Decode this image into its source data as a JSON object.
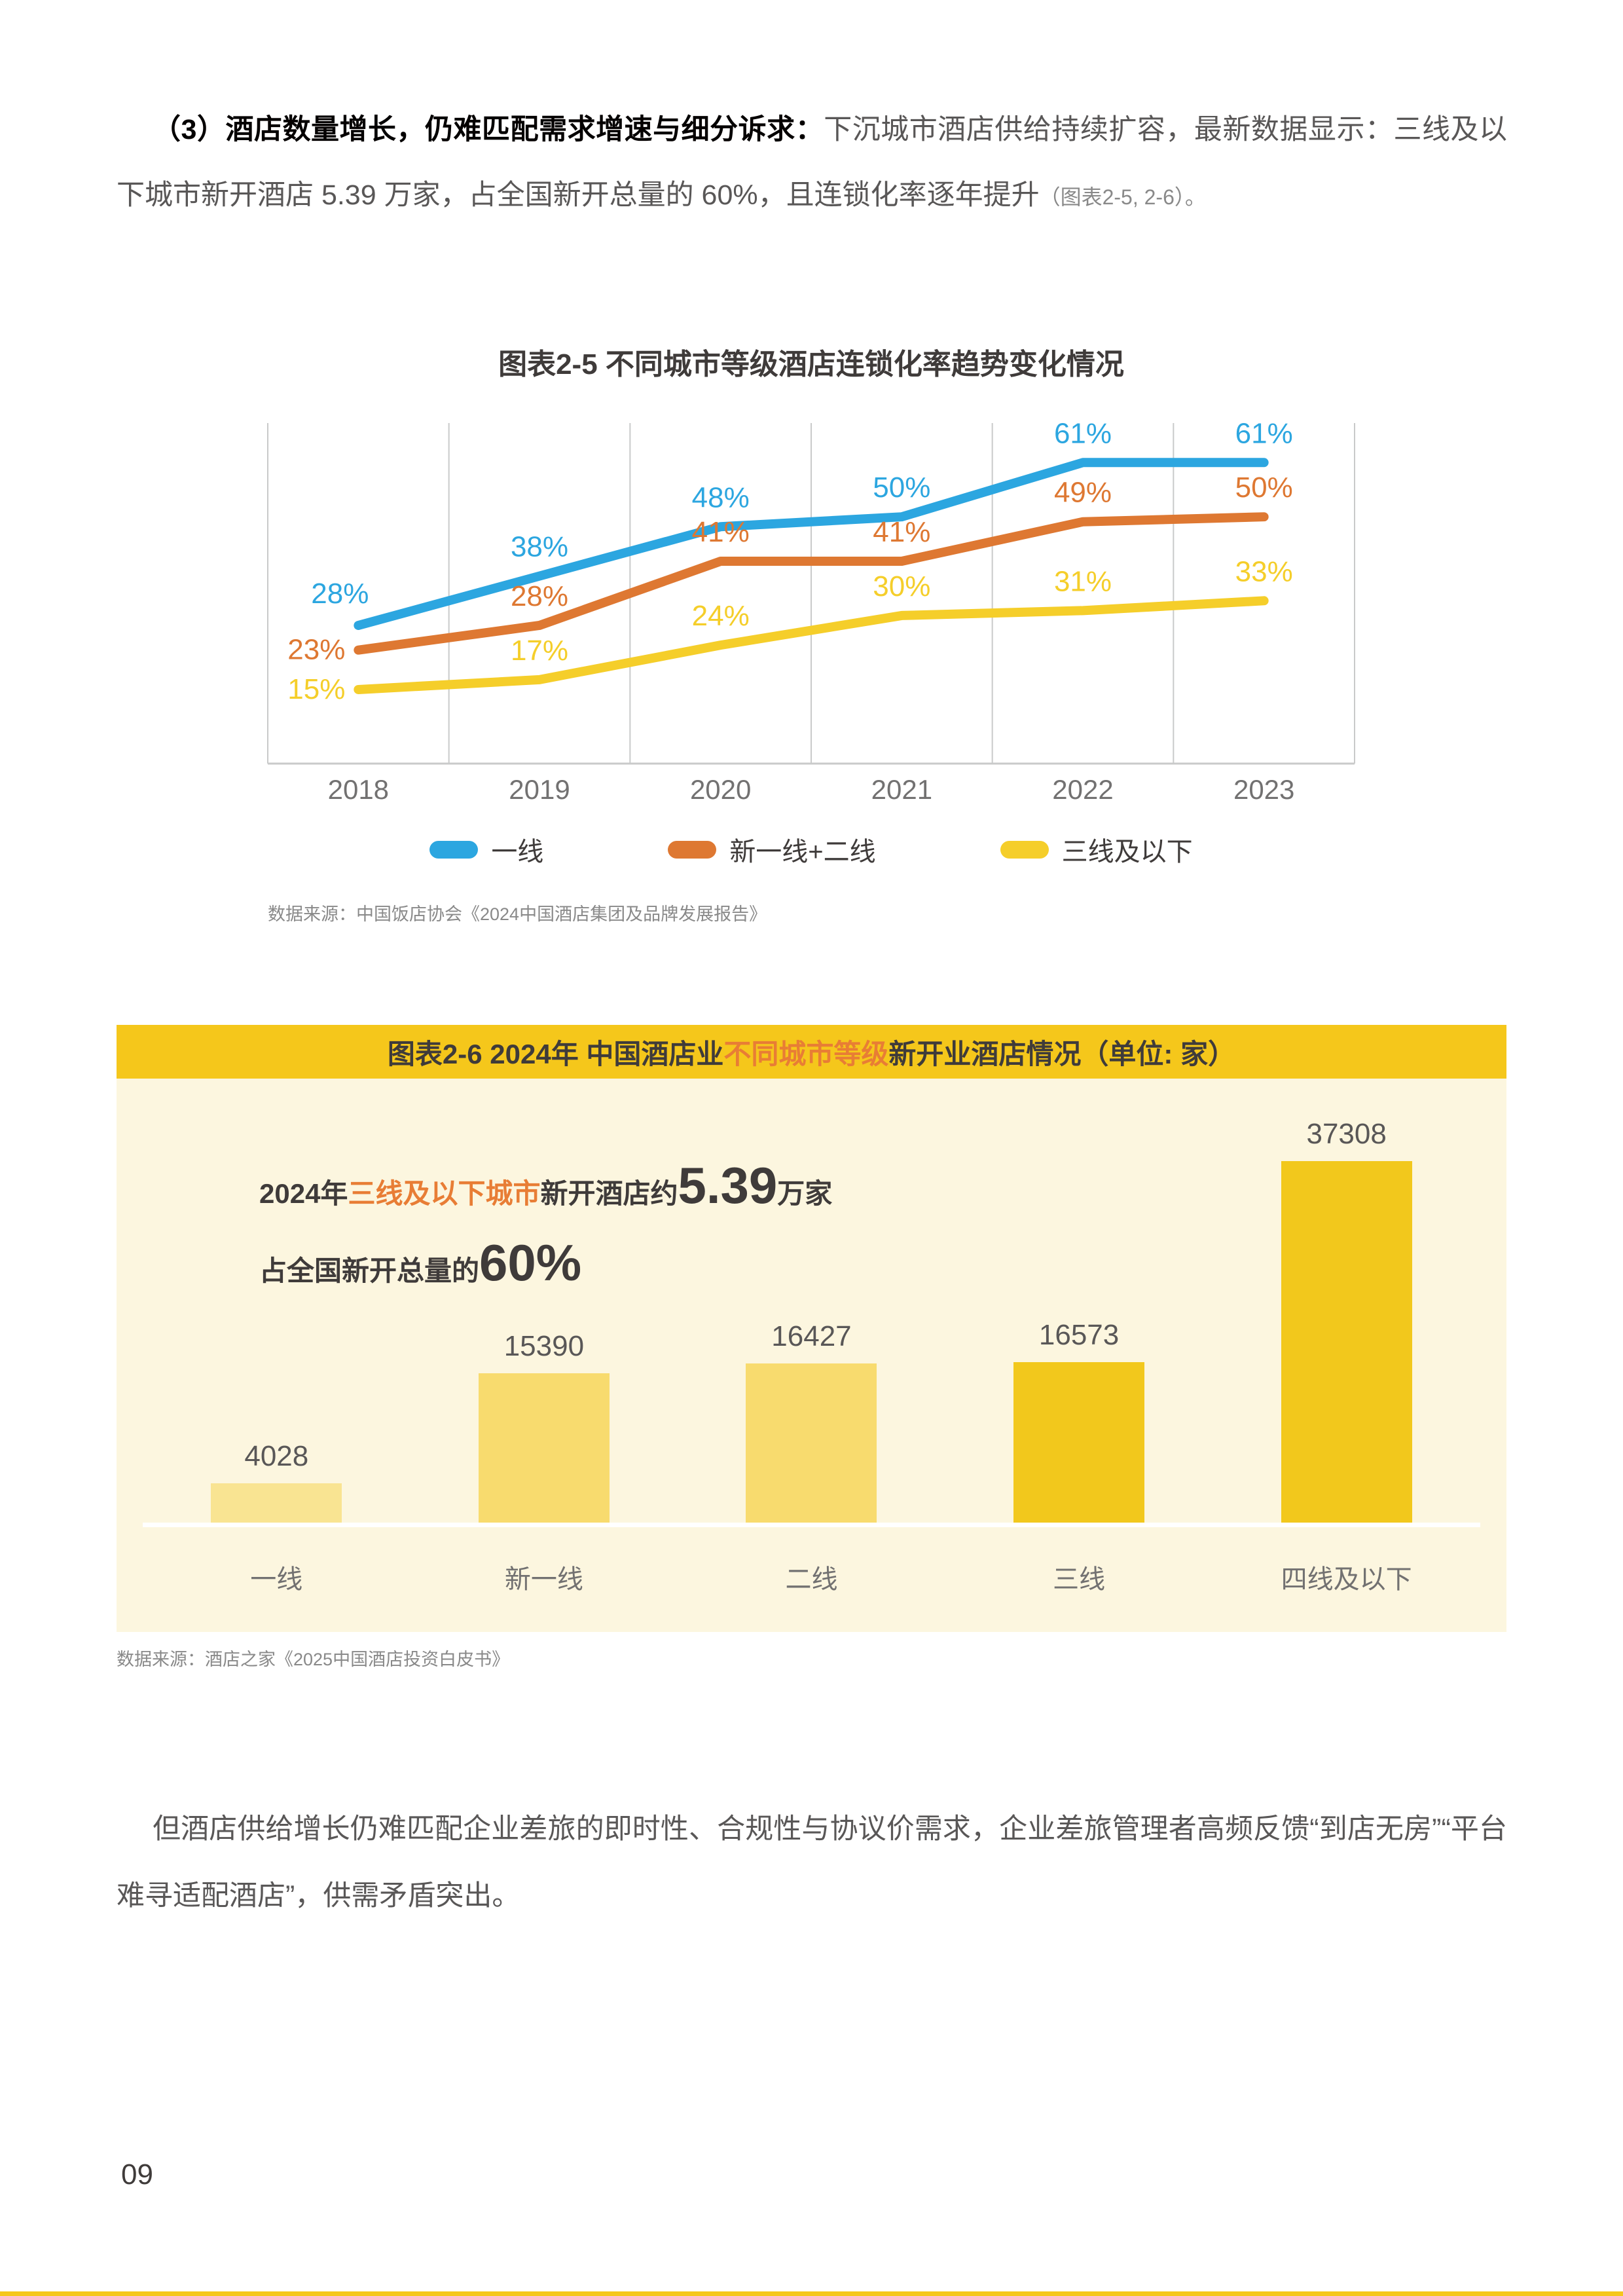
{
  "intro": {
    "lead": "（3）酒店数量增长，仍难匹配需求增速与细分诉求：",
    "body": "下沉城市酒店供给持续扩容，最新数据显示：三线及以下城市新开酒店 5.39 万家，占全国新开总量的 60%，且连锁化率逐年提升",
    "ref": "（图表2-5, 2-6）。"
  },
  "chart_data": [
    {
      "type": "line",
      "title": "图表2-5 不同城市等级酒店连锁化率趋势变化情况",
      "categories": [
        "2018",
        "2019",
        "2020",
        "2021",
        "2022",
        "2023"
      ],
      "series": [
        {
          "name": "一线",
          "color": "#2CA6E0",
          "values": [
            28,
            38,
            48,
            50,
            61,
            61
          ]
        },
        {
          "name": "新一线+二线",
          "color": "#DE7832",
          "values": [
            23,
            28,
            41,
            41,
            49,
            50
          ]
        },
        {
          "name": "三线及以下",
          "color": "#F5CE2A",
          "values": [
            15,
            17,
            24,
            30,
            31,
            33
          ]
        }
      ],
      "unit": "%",
      "ylim": [
        0,
        69
      ],
      "grid": "vertical-only",
      "legend_position": "bottom",
      "source": "数据来源：中国饭店协会《2024中国酒店集团及品牌发展报告》"
    },
    {
      "type": "bar",
      "title_prefix": "图表2-6 2024年 中国酒店业",
      "title_highlight": "不同城市等级",
      "title_suffix": "新开业酒店情况（单位: 家）",
      "categories": [
        "一线",
        "新一线",
        "二线",
        "三线",
        "四线及以下"
      ],
      "values": [
        4028,
        15390,
        16427,
        16573,
        37308
      ],
      "bar_colors": [
        "#F9E492",
        "#F8DB6E",
        "#F8DB6E",
        "#F2C81C",
        "#F2C81C"
      ],
      "background": "#FCF6DF",
      "header_background": "#F5C71B",
      "annotation": {
        "line1_prefix": "2024年",
        "line1_highlight": "三线及以下城市",
        "line1_mid": "新开酒店约",
        "line1_big": "5.39",
        "line1_suffix": "万家",
        "line2_prefix": "占全国新开总量的",
        "line2_big": "60%"
      },
      "source": "数据来源：酒店之家《2025中国酒店投资白皮书》"
    }
  ],
  "closing": {
    "text": "但酒店供给增长仍难匹配企业差旅的即时性、合规性与协议价需求，企业差旅管理者高频反馈“到店无房”“平台难寻适配酒店”，供需矛盾突出。"
  },
  "page": {
    "number": "09"
  },
  "colors": {
    "accent_yellow": "#F5C71B",
    "highlight_orange": "#E87D35",
    "text_dark": "#3F3B3A",
    "text_body": "#595757",
    "text_muted": "#898989",
    "axis_gray": "#C9CACA"
  }
}
